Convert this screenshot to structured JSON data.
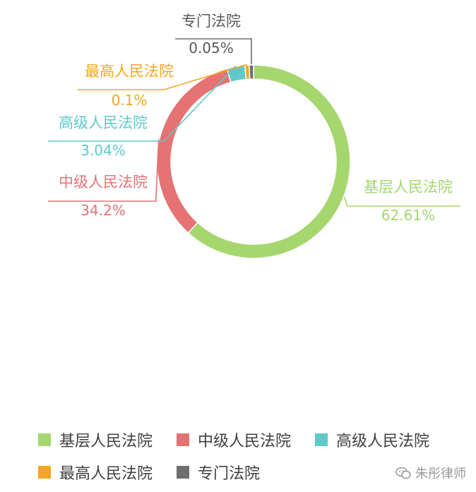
{
  "chart_data": {
    "type": "pie",
    "style": "donut",
    "categories": [
      "基层人民法院",
      "中级人民法院",
      "高级人民法院",
      "最高人民法院",
      "专门法院"
    ],
    "values": [
      62.61,
      34.2,
      3.04,
      0.1,
      0.05
    ],
    "value_labels": [
      "62.61%",
      "34.2%",
      "3.04%",
      "0.1%",
      "0.05%"
    ],
    "colors": [
      "#a5d76e",
      "#e57373",
      "#5fc9c9",
      "#f5a623",
      "#6e6e6e"
    ],
    "legend_position": "bottom"
  },
  "watermark": {
    "text": "朱彤律师",
    "icon": "wechat-icon"
  }
}
